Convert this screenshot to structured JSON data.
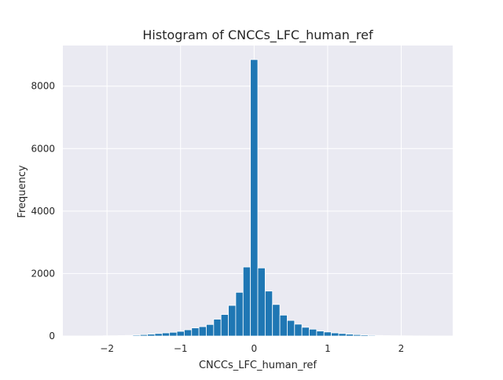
{
  "chart_data": {
    "type": "bar",
    "title": "Histogram of CNCCs_LFC_human_ref",
    "xlabel": "CNCCs_LFC_human_ref",
    "ylabel": "Frequency",
    "xlim": [
      -2.6,
      2.7
    ],
    "ylim": [
      0,
      9300
    ],
    "xticks": [
      {
        "value": -2,
        "label": "−2"
      },
      {
        "value": -1,
        "label": "−1"
      },
      {
        "value": 0,
        "label": "0"
      },
      {
        "value": 1,
        "label": "1"
      },
      {
        "value": 2,
        "label": "2"
      }
    ],
    "yticks": [
      {
        "value": 0,
        "label": "0"
      },
      {
        "value": 2000,
        "label": "2000"
      },
      {
        "value": 4000,
        "label": "4000"
      },
      {
        "value": 6000,
        "label": "6000"
      },
      {
        "value": 8000,
        "label": "8000"
      }
    ],
    "bin_width": 0.1,
    "bins": [
      {
        "x0": -2.45,
        "count": 2
      },
      {
        "x0": -2.35,
        "count": 3
      },
      {
        "x0": -2.25,
        "count": 3
      },
      {
        "x0": -2.15,
        "count": 5
      },
      {
        "x0": -2.05,
        "count": 8
      },
      {
        "x0": -1.95,
        "count": 10
      },
      {
        "x0": -1.85,
        "count": 15
      },
      {
        "x0": -1.75,
        "count": 20
      },
      {
        "x0": -1.65,
        "count": 30
      },
      {
        "x0": -1.55,
        "count": 45
      },
      {
        "x0": -1.45,
        "count": 60
      },
      {
        "x0": -1.35,
        "count": 80
      },
      {
        "x0": -1.25,
        "count": 100
      },
      {
        "x0": -1.15,
        "count": 120
      },
      {
        "x0": -1.05,
        "count": 150
      },
      {
        "x0": -0.95,
        "count": 200
      },
      {
        "x0": -0.85,
        "count": 260
      },
      {
        "x0": -0.75,
        "count": 300
      },
      {
        "x0": -0.65,
        "count": 370
      },
      {
        "x0": -0.55,
        "count": 540
      },
      {
        "x0": -0.45,
        "count": 690
      },
      {
        "x0": -0.35,
        "count": 980
      },
      {
        "x0": -0.25,
        "count": 1400
      },
      {
        "x0": -0.15,
        "count": 2210
      },
      {
        "x0": -0.05,
        "count": 8850
      },
      {
        "x0": 0.05,
        "count": 2180
      },
      {
        "x0": 0.15,
        "count": 1440
      },
      {
        "x0": 0.25,
        "count": 1010
      },
      {
        "x0": 0.35,
        "count": 670
      },
      {
        "x0": 0.45,
        "count": 500
      },
      {
        "x0": 0.55,
        "count": 380
      },
      {
        "x0": 0.65,
        "count": 280
      },
      {
        "x0": 0.75,
        "count": 220
      },
      {
        "x0": 0.85,
        "count": 160
      },
      {
        "x0": 0.95,
        "count": 130
      },
      {
        "x0": 1.05,
        "count": 100
      },
      {
        "x0": 1.15,
        "count": 80
      },
      {
        "x0": 1.25,
        "count": 60
      },
      {
        "x0": 1.35,
        "count": 45
      },
      {
        "x0": 1.45,
        "count": 35
      },
      {
        "x0": 1.55,
        "count": 25
      },
      {
        "x0": 1.65,
        "count": 18
      },
      {
        "x0": 1.75,
        "count": 14
      },
      {
        "x0": 1.85,
        "count": 10
      },
      {
        "x0": 1.95,
        "count": 8
      },
      {
        "x0": 2.05,
        "count": 6
      },
      {
        "x0": 2.15,
        "count": 5
      },
      {
        "x0": 2.25,
        "count": 4
      },
      {
        "x0": 2.35,
        "count": 3
      },
      {
        "x0": 2.45,
        "count": 2
      }
    ],
    "grid": true,
    "colors": {
      "bar": "#1f77b4",
      "bar_edge": "#ffffff",
      "plot_bg": "#eaeaf2",
      "grid": "#ffffff",
      "text": "#262626"
    }
  }
}
